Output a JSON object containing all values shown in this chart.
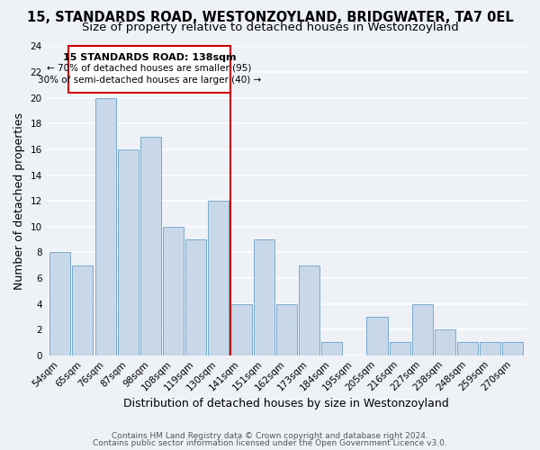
{
  "title": "15, STANDARDS ROAD, WESTONZOYLAND, BRIDGWATER, TA7 0EL",
  "subtitle": "Size of property relative to detached houses in Westonzoyland",
  "xlabel": "Distribution of detached houses by size in Westonzoyland",
  "ylabel": "Number of detached properties",
  "bin_labels": [
    "54sqm",
    "65sqm",
    "76sqm",
    "87sqm",
    "98sqm",
    "108sqm",
    "119sqm",
    "130sqm",
    "141sqm",
    "151sqm",
    "162sqm",
    "173sqm",
    "184sqm",
    "195sqm",
    "205sqm",
    "216sqm",
    "227sqm",
    "238sqm",
    "248sqm",
    "259sqm",
    "270sqm"
  ],
  "bar_values": [
    8,
    7,
    20,
    16,
    17,
    10,
    9,
    12,
    4,
    9,
    4,
    7,
    1,
    0,
    3,
    1,
    4,
    2,
    1,
    1,
    1
  ],
  "bar_color": "#c8d8e8",
  "bar_edge_color": "#7aaacc",
  "ylim": [
    0,
    24
  ],
  "yticks": [
    0,
    2,
    4,
    6,
    8,
    10,
    12,
    14,
    16,
    18,
    20,
    22,
    24
  ],
  "vline_index": 8,
  "vline_color": "#cc0000",
  "annotation_title": "15 STANDARDS ROAD: 138sqm",
  "annotation_line1": "← 70% of detached houses are smaller (95)",
  "annotation_line2": "30% of semi-detached houses are larger (40) →",
  "footer_line1": "Contains HM Land Registry data © Crown copyright and database right 2024.",
  "footer_line2": "Contains public sector information licensed under the Open Government Licence v3.0.",
  "background_color": "#eef2f7",
  "grid_color": "#ffffff",
  "title_fontsize": 10.5,
  "subtitle_fontsize": 9.5,
  "axis_label_fontsize": 9,
  "tick_fontsize": 7.5,
  "footer_fontsize": 6.5
}
